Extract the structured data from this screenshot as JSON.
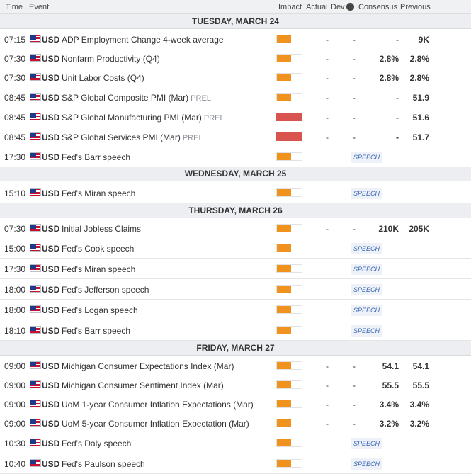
{
  "header": {
    "time": "Time",
    "event": "Event",
    "impact": "Impact",
    "actual": "Actual",
    "dev": "Dev",
    "consensus": "Consensus",
    "previous": "Previous",
    "info_icon": "i"
  },
  "colors": {
    "impact_medium": "#f0931e",
    "impact_high": "#d9534f",
    "speech_tag_text": "#3b68b5"
  },
  "days": [
    {
      "label": "TUESDAY, MARCH 24"
    },
    {
      "label": "WEDNESDAY, MARCH 25"
    },
    {
      "label": "THURSDAY, MARCH 26"
    },
    {
      "label": "FRIDAY, MARCH 27"
    }
  ],
  "rows": [
    {
      "time": "07:15",
      "currency": "USD",
      "event": "ADP Employment Change 4-week average",
      "tag": "",
      "impact": "medium",
      "actual": "-",
      "dev": "-",
      "consensus": "-",
      "previous": "9K",
      "speech": ""
    },
    {
      "time": "07:30",
      "currency": "USD",
      "event": "Nonfarm Productivity (Q4)",
      "tag": "",
      "impact": "medium",
      "actual": "-",
      "dev": "-",
      "consensus": "2.8%",
      "previous": "2.8%",
      "speech": ""
    },
    {
      "time": "07:30",
      "currency": "USD",
      "event": "Unit Labor Costs (Q4)",
      "tag": "",
      "impact": "medium",
      "actual": "-",
      "dev": "-",
      "consensus": "2.8%",
      "previous": "2.8%",
      "speech": ""
    },
    {
      "time": "08:45",
      "currency": "USD",
      "event": "S&P Global Composite PMI (Mar)",
      "tag": "PREL",
      "impact": "medium",
      "actual": "-",
      "dev": "-",
      "consensus": "-",
      "previous": "51.9",
      "speech": ""
    },
    {
      "time": "08:45",
      "currency": "USD",
      "event": "S&P Global Manufacturing PMI (Mar)",
      "tag": "PREL",
      "impact": "high",
      "actual": "-",
      "dev": "-",
      "consensus": "-",
      "previous": "51.6",
      "speech": ""
    },
    {
      "time": "08:45",
      "currency": "USD",
      "event": "S&P Global Services PMI (Mar)",
      "tag": "PREL",
      "impact": "high",
      "actual": "-",
      "dev": "-",
      "consensus": "-",
      "previous": "51.7",
      "speech": ""
    },
    {
      "time": "17:30",
      "currency": "USD",
      "event": "Fed's Barr speech",
      "tag": "",
      "impact": "medium",
      "actual": "",
      "dev": "",
      "consensus": "",
      "previous": "",
      "speech": "SPEECH"
    },
    {
      "time": "15:10",
      "currency": "USD",
      "event": "Fed's Miran speech",
      "tag": "",
      "impact": "medium",
      "actual": "",
      "dev": "",
      "consensus": "",
      "previous": "",
      "speech": "SPEECH"
    },
    {
      "time": "07:30",
      "currency": "USD",
      "event": "Initial Jobless Claims",
      "tag": "",
      "impact": "medium",
      "actual": "-",
      "dev": "-",
      "consensus": "210K",
      "previous": "205K",
      "speech": ""
    },
    {
      "time": "15:00",
      "currency": "USD",
      "event": "Fed's Cook speech",
      "tag": "",
      "impact": "medium",
      "actual": "",
      "dev": "",
      "consensus": "",
      "previous": "",
      "speech": "SPEECH"
    },
    {
      "time": "17:30",
      "currency": "USD",
      "event": "Fed's Miran speech",
      "tag": "",
      "impact": "medium",
      "actual": "",
      "dev": "",
      "consensus": "",
      "previous": "",
      "speech": "SPEECH"
    },
    {
      "time": "18:00",
      "currency": "USD",
      "event": "Fed's Jefferson speech",
      "tag": "",
      "impact": "medium",
      "actual": "",
      "dev": "",
      "consensus": "",
      "previous": "",
      "speech": "SPEECH"
    },
    {
      "time": "18:00",
      "currency": "USD",
      "event": "Fed's Logan speech",
      "tag": "",
      "impact": "medium",
      "actual": "",
      "dev": "",
      "consensus": "",
      "previous": "",
      "speech": "SPEECH"
    },
    {
      "time": "18:10",
      "currency": "USD",
      "event": "Fed's Barr speech",
      "tag": "",
      "impact": "medium",
      "actual": "",
      "dev": "",
      "consensus": "",
      "previous": "",
      "speech": "SPEECH"
    },
    {
      "time": "09:00",
      "currency": "USD",
      "event": "Michigan Consumer Expectations Index (Mar)",
      "tag": "",
      "impact": "medium",
      "actual": "-",
      "dev": "-",
      "consensus": "54.1",
      "previous": "54.1",
      "speech": ""
    },
    {
      "time": "09:00",
      "currency": "USD",
      "event": "Michigan Consumer Sentiment Index (Mar)",
      "tag": "",
      "impact": "medium",
      "actual": "-",
      "dev": "-",
      "consensus": "55.5",
      "previous": "55.5",
      "speech": ""
    },
    {
      "time": "09:00",
      "currency": "USD",
      "event": "UoM 1-year Consumer Inflation Expectations (Mar)",
      "tag": "",
      "impact": "medium",
      "actual": "-",
      "dev": "-",
      "consensus": "3.4%",
      "previous": "3.4%",
      "speech": ""
    },
    {
      "time": "09:00",
      "currency": "USD",
      "event": "UoM 5-year Consumer Inflation Expectation (Mar)",
      "tag": "",
      "impact": "medium",
      "actual": "-",
      "dev": "-",
      "consensus": "3.2%",
      "previous": "3.2%",
      "speech": ""
    },
    {
      "time": "10:30",
      "currency": "USD",
      "event": "Fed's Daly speech",
      "tag": "",
      "impact": "medium",
      "actual": "",
      "dev": "",
      "consensus": "",
      "previous": "",
      "speech": "SPEECH"
    },
    {
      "time": "10:40",
      "currency": "USD",
      "event": "Fed's Paulson speech",
      "tag": "",
      "impact": "medium",
      "actual": "",
      "dev": "",
      "consensus": "",
      "previous": "",
      "speech": "SPEECH"
    }
  ]
}
